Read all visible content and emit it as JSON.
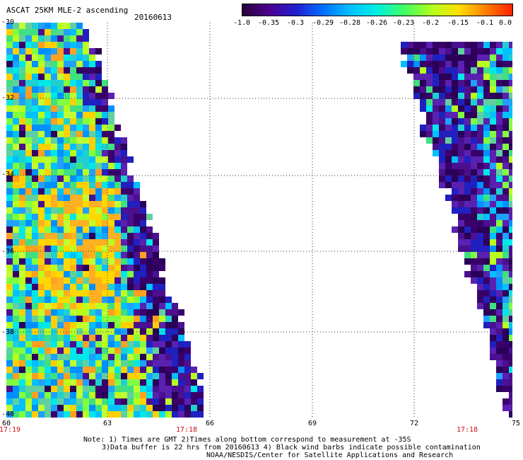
{
  "header": {
    "title": "ASCAT 25KM MLE-2 ascending",
    "date": "20160613"
  },
  "colorbar": {
    "labels": [
      "-1.0",
      "-0.35",
      "-0.3",
      "-0.29",
      "-0.28",
      "-0.26",
      "-0.23",
      "-0.2",
      "-0.15",
      "-0.1",
      "0.0"
    ],
    "colors": [
      "#2a003a",
      "#4b0090",
      "#2020d0",
      "#0070ff",
      "#00c0ff",
      "#00f0e0",
      "#40ff60",
      "#b0ff20",
      "#ffe000",
      "#ff8000",
      "#ff2000"
    ]
  },
  "map": {
    "lat_labels": [
      "-30",
      "-32",
      "-34",
      "-36",
      "-38",
      "-40"
    ],
    "lon_labels": [
      "60",
      "63",
      "66",
      "69",
      "72",
      "75"
    ],
    "time_labels": [
      "17:19",
      "17:18",
      "17:18"
    ]
  },
  "footer": {
    "line1": "Note: 1) Times are GMT 2)Times along bottom correspond to measurement at -35S",
    "line2": "3)Data buffer is 22 hrs from 20160613 4) Black wind barbs indicate possible contamination",
    "line3": "NOAA/NESDIS/Center for Satellite Applications and Research"
  }
}
